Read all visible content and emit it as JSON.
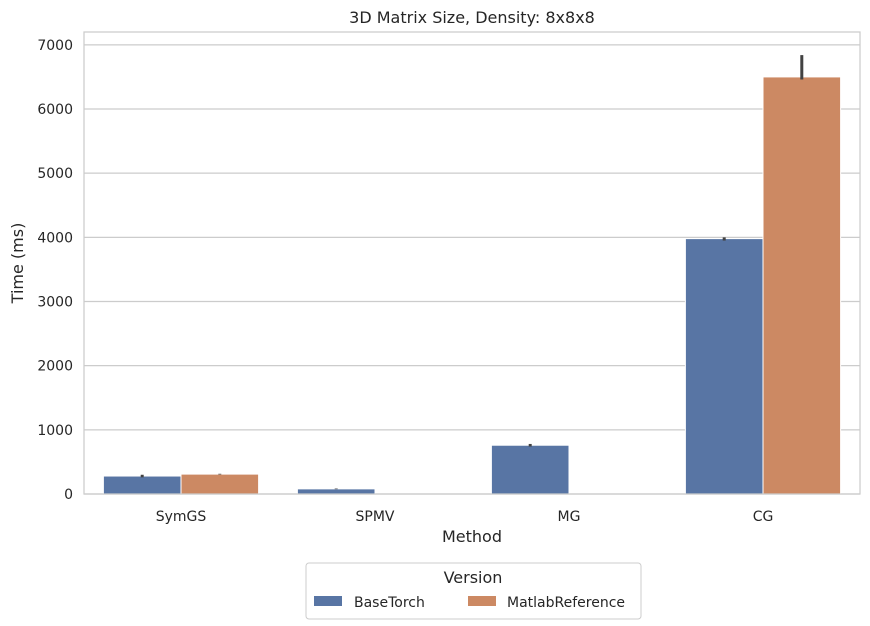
{
  "chart_data": {
    "type": "bar",
    "title": "3D Matrix Size, Density: 8x8x8",
    "xlabel": "Method",
    "ylabel": "Time (ms)",
    "categories": [
      "SymGS",
      "SPMV",
      "MG",
      "CG"
    ],
    "ylim": [
      0,
      7200
    ],
    "yticks": [
      0,
      1000,
      2000,
      3000,
      4000,
      5000,
      6000,
      7000
    ],
    "grid": true,
    "legend": {
      "title": "Version",
      "placement": "bottom-center"
    },
    "series": [
      {
        "name": "BaseTorch",
        "color": "#5875a4",
        "values": [
          280,
          80,
          760,
          3980
        ],
        "err_low": [
          260,
          75,
          740,
          3950
        ],
        "err_high": [
          300,
          85,
          780,
          4000
        ]
      },
      {
        "name": "MatlabReference",
        "color": "#cc8963",
        "values": [
          310,
          0,
          0,
          6500
        ],
        "err_low": [
          305,
          0,
          0,
          6460
        ],
        "err_high": [
          315,
          0,
          0,
          6840
        ]
      }
    ]
  }
}
